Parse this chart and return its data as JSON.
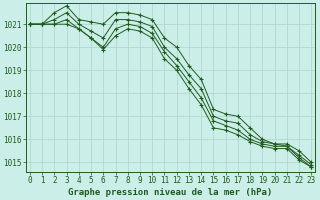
{
  "title": "Graphe pression niveau de la mer (hPa)",
  "background_color": "#cceee8",
  "grid_color": "#aad4cc",
  "line_color": "#1e5c1e",
  "hours": [
    0,
    1,
    2,
    3,
    4,
    5,
    6,
    7,
    8,
    9,
    10,
    11,
    12,
    13,
    14,
    15,
    16,
    17,
    18,
    19,
    20,
    21,
    22,
    23
  ],
  "series": [
    [
      1021.0,
      1021.0,
      1021.5,
      1021.8,
      1021.2,
      1021.1,
      1021.0,
      1021.5,
      1021.5,
      1021.4,
      1021.2,
      1020.4,
      1020.0,
      1019.2,
      1018.6,
      1017.3,
      1017.1,
      1017.0,
      1016.5,
      1016.0,
      1015.8,
      1015.8,
      1015.5,
      1015.0
    ],
    [
      1021.0,
      1021.0,
      1021.2,
      1021.5,
      1021.0,
      1020.7,
      1020.4,
      1021.2,
      1021.2,
      1021.1,
      1020.9,
      1020.0,
      1019.5,
      1018.8,
      1018.2,
      1017.0,
      1016.8,
      1016.7,
      1016.2,
      1015.9,
      1015.8,
      1015.7,
      1015.3,
      1014.9
    ],
    [
      1021.0,
      1021.0,
      1021.0,
      1021.2,
      1020.8,
      1020.4,
      1020.0,
      1020.8,
      1021.0,
      1020.9,
      1020.6,
      1019.8,
      1019.2,
      1018.5,
      1017.8,
      1016.8,
      1016.6,
      1016.4,
      1016.0,
      1015.8,
      1015.7,
      1015.7,
      1015.2,
      1014.8
    ],
    [
      1021.0,
      1021.0,
      1021.0,
      1021.0,
      1020.8,
      1020.4,
      1019.9,
      1020.5,
      1020.8,
      1020.7,
      1020.4,
      1019.5,
      1019.0,
      1018.2,
      1017.5,
      1016.5,
      1016.4,
      1016.2,
      1015.9,
      1015.7,
      1015.6,
      1015.6,
      1015.1,
      1014.8
    ]
  ],
  "ylim": [
    1014.6,
    1021.9
  ],
  "yticks": [
    1015,
    1016,
    1017,
    1018,
    1019,
    1020,
    1021
  ],
  "tick_fontsize": 5.5,
  "title_fontsize": 6.5
}
